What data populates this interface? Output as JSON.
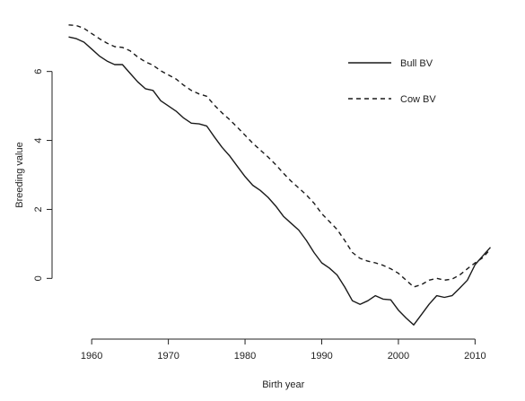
{
  "chart_data": {
    "type": "line",
    "title": "",
    "xlabel": "Birth year",
    "ylabel": "Breeding value",
    "xlim": [
      1956,
      2013
    ],
    "ylim": [
      -1.5,
      7.5
    ],
    "xticks": [
      1960,
      1970,
      1980,
      1990,
      2000,
      2010
    ],
    "yticks": [
      0,
      2,
      4,
      6
    ],
    "grid": false,
    "legend_position": "top-right",
    "series": [
      {
        "name": "Bull BV",
        "style": "solid",
        "color": "#1a1a1a",
        "x": [
          1957,
          1958,
          1959,
          1960,
          1961,
          1962,
          1963,
          1964,
          1965,
          1966,
          1967,
          1968,
          1969,
          1970,
          1971,
          1972,
          1973,
          1974,
          1975,
          1976,
          1977,
          1978,
          1979,
          1980,
          1981,
          1982,
          1983,
          1984,
          1985,
          1986,
          1987,
          1988,
          1989,
          1990,
          1991,
          1992,
          1993,
          1994,
          1995,
          1996,
          1997,
          1998,
          1999,
          2000,
          2001,
          2002,
          2003,
          2004,
          2005,
          2006,
          2007,
          2008,
          2009,
          2010,
          2011,
          2012
        ],
        "values": [
          7.0,
          6.95,
          6.85,
          6.65,
          6.45,
          6.3,
          6.2,
          6.2,
          5.95,
          5.7,
          5.5,
          5.45,
          5.15,
          5.0,
          4.85,
          4.65,
          4.5,
          4.48,
          4.42,
          4.1,
          3.8,
          3.55,
          3.25,
          2.95,
          2.7,
          2.55,
          2.35,
          2.1,
          1.8,
          1.6,
          1.4,
          1.1,
          0.75,
          0.45,
          0.3,
          0.1,
          -0.25,
          -0.65,
          -0.75,
          -0.65,
          -0.5,
          -0.6,
          -0.62,
          -0.92,
          -1.15,
          -1.35,
          -1.05,
          -0.75,
          -0.5,
          -0.55,
          -0.5,
          -0.28,
          -0.05,
          0.4,
          0.65,
          0.9
        ]
      },
      {
        "name": "Cow BV",
        "style": "dashed",
        "color": "#1a1a1a",
        "x": [
          1957,
          1958,
          1959,
          1960,
          1961,
          1962,
          1963,
          1964,
          1965,
          1966,
          1967,
          1968,
          1969,
          1970,
          1971,
          1972,
          1973,
          1974,
          1975,
          1976,
          1977,
          1978,
          1979,
          1980,
          1981,
          1982,
          1983,
          1984,
          1985,
          1986,
          1987,
          1988,
          1989,
          1990,
          1991,
          1992,
          1993,
          1994,
          1995,
          1996,
          1997,
          1998,
          1999,
          2000,
          2001,
          2002,
          2003,
          2004,
          2005,
          2006,
          2007,
          2008,
          2009,
          2010,
          2011,
          2012
        ],
        "values": [
          7.35,
          7.33,
          7.25,
          7.1,
          6.95,
          6.82,
          6.72,
          6.7,
          6.6,
          6.42,
          6.28,
          6.18,
          6.02,
          5.9,
          5.78,
          5.6,
          5.45,
          5.35,
          5.28,
          5.02,
          4.8,
          4.6,
          4.38,
          4.15,
          3.92,
          3.72,
          3.52,
          3.3,
          3.05,
          2.82,
          2.62,
          2.42,
          2.18,
          1.88,
          1.65,
          1.42,
          1.1,
          0.75,
          0.58,
          0.5,
          0.45,
          0.38,
          0.28,
          0.15,
          -0.05,
          -0.25,
          -0.18,
          -0.05,
          0.0,
          -0.05,
          -0.02,
          0.1,
          0.28,
          0.45,
          0.6,
          0.85
        ]
      }
    ]
  }
}
